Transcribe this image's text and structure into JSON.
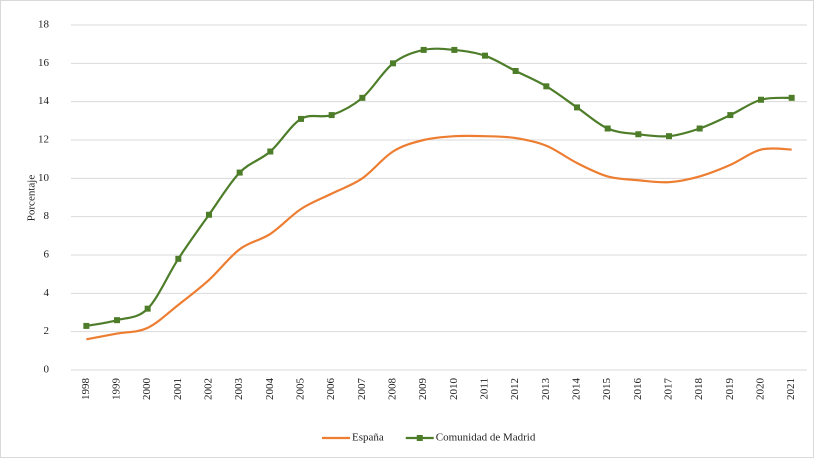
{
  "chart_data": {
    "type": "line",
    "y_label": "Porcentaje",
    "categories": [
      "1998",
      "1999",
      "2000",
      "2001",
      "2002",
      "2003",
      "2004",
      "2005",
      "2006",
      "2007",
      "2008",
      "2009",
      "2010",
      "2011",
      "2012",
      "2013",
      "2014",
      "2015",
      "2016",
      "2017",
      "2018",
      "2019",
      "2020",
      "2021"
    ],
    "series": [
      {
        "name": "España",
        "color": "#ed7d31",
        "marker": false,
        "values": [
          1.6,
          1.9,
          2.2,
          3.4,
          4.7,
          6.3,
          7.1,
          8.4,
          9.2,
          10.0,
          11.4,
          12.0,
          12.2,
          12.2,
          12.1,
          11.7,
          10.8,
          10.1,
          9.9,
          9.8,
          10.1,
          10.7,
          11.5,
          11.5
        ]
      },
      {
        "name": "Comunidad de Madrid",
        "color": "#4e7d2a",
        "marker": true,
        "values": [
          2.3,
          2.6,
          3.2,
          5.8,
          8.1,
          10.3,
          11.4,
          13.1,
          13.3,
          14.2,
          16.0,
          16.7,
          16.7,
          16.4,
          15.6,
          14.8,
          13.7,
          12.6,
          12.3,
          12.2,
          12.6,
          13.3,
          14.1,
          14.2
        ]
      }
    ],
    "ylim": [
      0,
      18
    ],
    "yticks": [
      0,
      2,
      4,
      6,
      8,
      10,
      12,
      14,
      16,
      18
    ],
    "grid": true,
    "legend": "bottom"
  }
}
